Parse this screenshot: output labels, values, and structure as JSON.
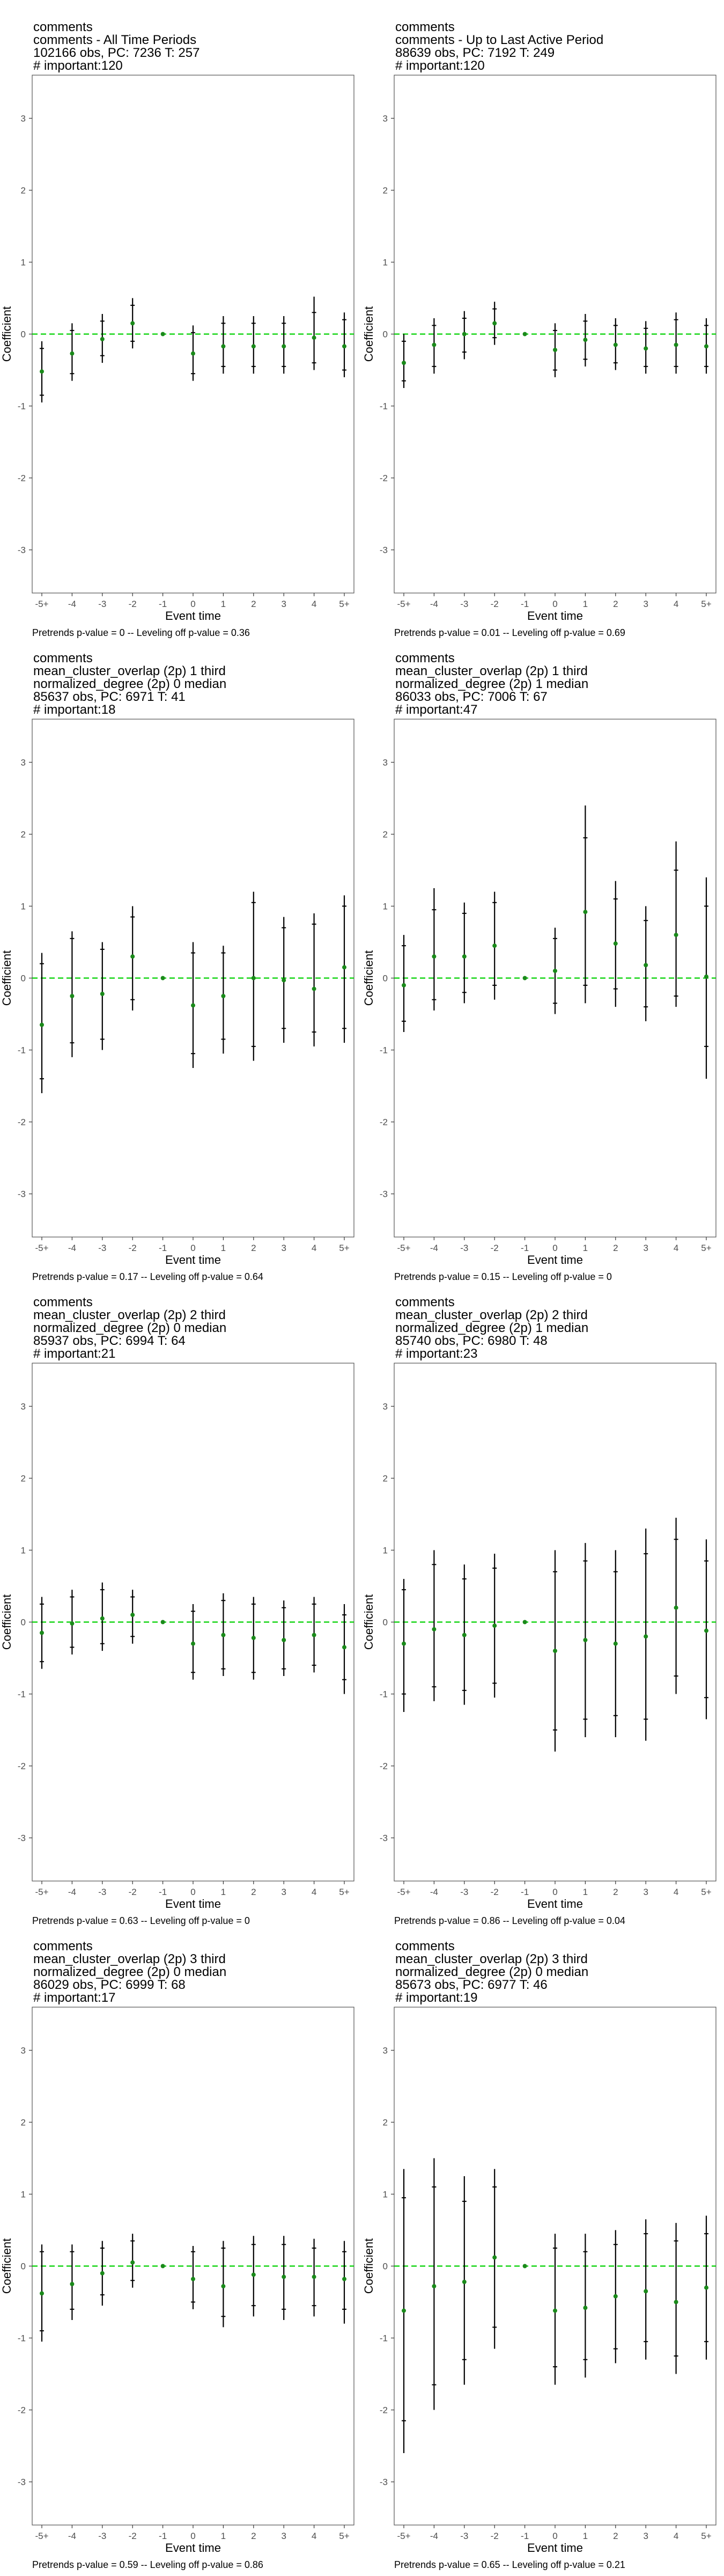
{
  "colors": {
    "point": "#1a8a1a",
    "zero_line": "#00d000",
    "error_bar": "#000000",
    "panel_border": "#555555"
  },
  "chart_data": [
    {
      "type": "scatter",
      "title_lines": [
        "comments",
        "comments - All Time Periods",
        "102166 obs, PC: 7236 T: 257",
        "# important:120"
      ],
      "xlabel": "Event time",
      "ylabel": "Coefficient",
      "categories": [
        "-5+",
        "-4",
        "-3",
        "-2",
        "-1",
        "0",
        "1",
        "2",
        "3",
        "4",
        "5+"
      ],
      "ylim": [
        -3.6,
        3.6
      ],
      "yticks": [
        -3,
        -2,
        -1,
        0,
        1,
        2,
        3
      ],
      "estimates": [
        -0.52,
        -0.27,
        -0.07,
        0.15,
        0.0,
        -0.27,
        -0.17,
        -0.17,
        -0.17,
        -0.05,
        -0.17
      ],
      "ci90": [
        [
          -0.85,
          -0.2
        ],
        [
          -0.55,
          0.05
        ],
        [
          -0.3,
          0.18
        ],
        [
          -0.1,
          0.4
        ],
        [
          0,
          0
        ],
        [
          -0.55,
          0.02
        ],
        [
          -0.45,
          0.15
        ],
        [
          -0.45,
          0.15
        ],
        [
          -0.45,
          0.15
        ],
        [
          -0.4,
          0.3
        ],
        [
          -0.5,
          0.2
        ]
      ],
      "ci95": [
        [
          -0.95,
          -0.1
        ],
        [
          -0.65,
          0.15
        ],
        [
          -0.4,
          0.28
        ],
        [
          -0.2,
          0.5
        ],
        [
          0,
          0
        ],
        [
          -0.65,
          0.12
        ],
        [
          -0.55,
          0.25
        ],
        [
          -0.55,
          0.25
        ],
        [
          -0.55,
          0.25
        ],
        [
          -0.5,
          0.52
        ],
        [
          -0.6,
          0.3
        ]
      ],
      "caption": "Pretrends p-value = 0 -- Leveling off p-value = 0.36"
    },
    {
      "type": "scatter",
      "title_lines": [
        "comments",
        "comments - Up to Last Active Period",
        "88639 obs, PC: 7192 T: 249",
        "# important:120"
      ],
      "xlabel": "Event time",
      "ylabel": "Coefficient",
      "categories": [
        "-5+",
        "-4",
        "-3",
        "-2",
        "-1",
        "0",
        "1",
        "2",
        "3",
        "4",
        "5+"
      ],
      "ylim": [
        -3.6,
        3.6
      ],
      "yticks": [
        -3,
        -2,
        -1,
        0,
        1,
        2,
        3
      ],
      "estimates": [
        -0.4,
        -0.15,
        0.0,
        0.15,
        0.0,
        -0.22,
        -0.08,
        -0.15,
        -0.2,
        -0.15,
        -0.17
      ],
      "ci90": [
        [
          -0.65,
          -0.1
        ],
        [
          -0.45,
          0.12
        ],
        [
          -0.25,
          0.22
        ],
        [
          -0.05,
          0.35
        ],
        [
          0,
          0
        ],
        [
          -0.5,
          0.05
        ],
        [
          -0.35,
          0.18
        ],
        [
          -0.4,
          0.12
        ],
        [
          -0.45,
          0.08
        ],
        [
          -0.45,
          0.2
        ],
        [
          -0.45,
          0.12
        ]
      ],
      "ci95": [
        [
          -0.75,
          0.0
        ],
        [
          -0.55,
          0.22
        ],
        [
          -0.35,
          0.32
        ],
        [
          -0.15,
          0.45
        ],
        [
          0,
          0
        ],
        [
          -0.6,
          0.15
        ],
        [
          -0.45,
          0.28
        ],
        [
          -0.5,
          0.22
        ],
        [
          -0.55,
          0.18
        ],
        [
          -0.55,
          0.3
        ],
        [
          -0.55,
          0.22
        ]
      ],
      "caption": "Pretrends p-value = 0.01 -- Leveling off p-value = 0.69"
    },
    {
      "type": "scatter",
      "title_lines": [
        "comments",
        "mean_cluster_overlap (2p) 1 third",
        "normalized_degree (2p) 0 median",
        "85637 obs, PC: 6971 T: 41",
        "# important:18"
      ],
      "xlabel": "Event time",
      "ylabel": "Coefficient",
      "categories": [
        "-5+",
        "-4",
        "-3",
        "-2",
        "-1",
        "0",
        "1",
        "2",
        "3",
        "4",
        "5+"
      ],
      "ylim": [
        -3.6,
        3.6
      ],
      "yticks": [
        -3,
        -2,
        -1,
        0,
        1,
        2,
        3
      ],
      "estimates": [
        -0.65,
        -0.25,
        -0.22,
        0.3,
        0.0,
        -0.38,
        -0.25,
        0.0,
        -0.03,
        -0.15,
        0.15
      ],
      "ci90": [
        [
          -1.4,
          0.2
        ],
        [
          -0.9,
          0.55
        ],
        [
          -0.85,
          0.4
        ],
        [
          -0.3,
          0.85
        ],
        [
          0,
          0
        ],
        [
          -1.05,
          0.35
        ],
        [
          -0.85,
          0.35
        ],
        [
          -0.95,
          1.05
        ],
        [
          -0.7,
          0.7
        ],
        [
          -0.75,
          0.75
        ],
        [
          -0.7,
          1.0
        ]
      ],
      "ci95": [
        [
          -1.6,
          0.35
        ],
        [
          -1.1,
          0.65
        ],
        [
          -1.0,
          0.5
        ],
        [
          -0.45,
          1.0
        ],
        [
          0,
          0
        ],
        [
          -1.25,
          0.5
        ],
        [
          -1.05,
          0.45
        ],
        [
          -1.15,
          1.2
        ],
        [
          -0.9,
          0.85
        ],
        [
          -0.95,
          0.9
        ],
        [
          -0.9,
          1.15
        ]
      ],
      "caption": "Pretrends p-value = 0.17 -- Leveling off p-value = 0.64"
    },
    {
      "type": "scatter",
      "title_lines": [
        "comments",
        "mean_cluster_overlap (2p) 1 third",
        "normalized_degree (2p) 1 median",
        "86033 obs, PC: 7006 T: 67",
        "# important:47"
      ],
      "xlabel": "Event time",
      "ylabel": "Coefficient",
      "categories": [
        "-5+",
        "-4",
        "-3",
        "-2",
        "-1",
        "0",
        "1",
        "2",
        "3",
        "4",
        "5+"
      ],
      "ylim": [
        -3.6,
        3.6
      ],
      "yticks": [
        -3,
        -2,
        -1,
        0,
        1,
        2,
        3
      ],
      "estimates": [
        -0.1,
        0.3,
        0.3,
        0.45,
        0.0,
        0.1,
        0.92,
        0.48,
        0.18,
        0.6,
        0.02
      ],
      "ci90": [
        [
          -0.6,
          0.45
        ],
        [
          -0.3,
          0.95
        ],
        [
          -0.2,
          0.9
        ],
        [
          -0.1,
          1.05
        ],
        [
          0,
          0
        ],
        [
          -0.35,
          0.55
        ],
        [
          -0.1,
          1.95
        ],
        [
          -0.15,
          1.1
        ],
        [
          -0.4,
          0.8
        ],
        [
          -0.25,
          1.5
        ],
        [
          -0.95,
          1.0
        ]
      ],
      "ci95": [
        [
          -0.75,
          0.6
        ],
        [
          -0.45,
          1.25
        ],
        [
          -0.35,
          1.05
        ],
        [
          -0.3,
          1.2
        ],
        [
          0,
          0
        ],
        [
          -0.5,
          0.7
        ],
        [
          -0.35,
          2.4
        ],
        [
          -0.4,
          1.35
        ],
        [
          -0.6,
          1.0
        ],
        [
          -0.4,
          1.9
        ],
        [
          -1.4,
          1.4
        ]
      ],
      "caption": "Pretrends p-value = 0.15 -- Leveling off p-value = 0"
    },
    {
      "type": "scatter",
      "title_lines": [
        "comments",
        "mean_cluster_overlap (2p) 2 third",
        "normalized_degree (2p) 0 median",
        "85937 obs, PC: 6994 T: 64",
        "# important:21"
      ],
      "xlabel": "Event time",
      "ylabel": "Coefficient",
      "categories": [
        "-5+",
        "-4",
        "-3",
        "-2",
        "-1",
        "0",
        "1",
        "2",
        "3",
        "4",
        "5+"
      ],
      "ylim": [
        -3.6,
        3.6
      ],
      "yticks": [
        -3,
        -2,
        -1,
        0,
        1,
        2,
        3
      ],
      "estimates": [
        -0.15,
        -0.02,
        0.05,
        0.1,
        0.0,
        -0.3,
        -0.18,
        -0.22,
        -0.25,
        -0.18,
        -0.35
      ],
      "ci90": [
        [
          -0.55,
          0.25
        ],
        [
          -0.35,
          0.35
        ],
        [
          -0.3,
          0.45
        ],
        [
          -0.2,
          0.35
        ],
        [
          0,
          0
        ],
        [
          -0.7,
          0.15
        ],
        [
          -0.65,
          0.3
        ],
        [
          -0.7,
          0.25
        ],
        [
          -0.65,
          0.2
        ],
        [
          -0.6,
          0.25
        ],
        [
          -0.8,
          0.1
        ]
      ],
      "ci95": [
        [
          -0.65,
          0.35
        ],
        [
          -0.45,
          0.45
        ],
        [
          -0.4,
          0.55
        ],
        [
          -0.3,
          0.45
        ],
        [
          0,
          0
        ],
        [
          -0.8,
          0.25
        ],
        [
          -0.75,
          0.4
        ],
        [
          -0.8,
          0.35
        ],
        [
          -0.75,
          0.3
        ],
        [
          -0.7,
          0.35
        ],
        [
          -1.0,
          0.25
        ]
      ],
      "caption": "Pretrends p-value = 0.63 -- Leveling off p-value = 0"
    },
    {
      "type": "scatter",
      "title_lines": [
        "comments",
        "mean_cluster_overlap (2p) 2 third",
        "normalized_degree (2p) 1 median",
        "85740 obs, PC: 6980 T: 48",
        "# important:23"
      ],
      "xlabel": "Event time",
      "ylabel": "Coefficient",
      "categories": [
        "-5+",
        "-4",
        "-3",
        "-2",
        "-1",
        "0",
        "1",
        "2",
        "3",
        "4",
        "5+"
      ],
      "ylim": [
        -3.6,
        3.6
      ],
      "yticks": [
        -3,
        -2,
        -1,
        0,
        1,
        2,
        3
      ],
      "estimates": [
        -0.3,
        -0.1,
        -0.18,
        -0.05,
        0.0,
        -0.4,
        -0.25,
        -0.3,
        -0.2,
        0.2,
        -0.12
      ],
      "ci90": [
        [
          -1.0,
          0.45
        ],
        [
          -0.9,
          0.8
        ],
        [
          -0.95,
          0.6
        ],
        [
          -0.85,
          0.75
        ],
        [
          0,
          0
        ],
        [
          -1.5,
          0.7
        ],
        [
          -1.35,
          0.85
        ],
        [
          -1.3,
          0.7
        ],
        [
          -1.35,
          0.95
        ],
        [
          -0.75,
          1.15
        ],
        [
          -1.05,
          0.85
        ]
      ],
      "ci95": [
        [
          -1.25,
          0.6
        ],
        [
          -1.1,
          1.0
        ],
        [
          -1.15,
          0.8
        ],
        [
          -1.05,
          0.95
        ],
        [
          0,
          0
        ],
        [
          -1.8,
          1.0
        ],
        [
          -1.6,
          1.1
        ],
        [
          -1.6,
          1.0
        ],
        [
          -1.65,
          1.3
        ],
        [
          -1.0,
          1.45
        ],
        [
          -1.35,
          1.15
        ]
      ],
      "caption": "Pretrends p-value = 0.86 -- Leveling off p-value = 0.04"
    },
    {
      "type": "scatter",
      "title_lines": [
        "comments",
        "mean_cluster_overlap (2p) 3 third",
        "normalized_degree (2p) 0 median",
        "86029 obs, PC: 6999 T: 68",
        "# important:17"
      ],
      "xlabel": "Event time",
      "ylabel": "Coefficient",
      "categories": [
        "-5+",
        "-4",
        "-3",
        "-2",
        "-1",
        "0",
        "1",
        "2",
        "3",
        "4",
        "5+"
      ],
      "ylim": [
        -3.6,
        3.6
      ],
      "yticks": [
        -3,
        -2,
        -1,
        0,
        1,
        2,
        3
      ],
      "estimates": [
        -0.38,
        -0.25,
        -0.1,
        0.05,
        0.0,
        -0.18,
        -0.28,
        -0.12,
        -0.15,
        -0.15,
        -0.18
      ],
      "ci90": [
        [
          -0.9,
          0.2
        ],
        [
          -0.6,
          0.2
        ],
        [
          -0.4,
          0.25
        ],
        [
          -0.2,
          0.35
        ],
        [
          0,
          0
        ],
        [
          -0.5,
          0.2
        ],
        [
          -0.7,
          0.25
        ],
        [
          -0.55,
          0.3
        ],
        [
          -0.6,
          0.3
        ],
        [
          -0.55,
          0.25
        ],
        [
          -0.6,
          0.2
        ]
      ],
      "ci95": [
        [
          -1.05,
          0.3
        ],
        [
          -0.75,
          0.3
        ],
        [
          -0.55,
          0.35
        ],
        [
          -0.3,
          0.45
        ],
        [
          0,
          0
        ],
        [
          -0.6,
          0.28
        ],
        [
          -0.85,
          0.35
        ],
        [
          -0.7,
          0.42
        ],
        [
          -0.75,
          0.42
        ],
        [
          -0.7,
          0.38
        ],
        [
          -0.8,
          0.35
        ]
      ],
      "caption": "Pretrends p-value = 0.59 -- Leveling off p-value = 0.86"
    },
    {
      "type": "scatter",
      "title_lines": [
        "comments",
        "mean_cluster_overlap (2p) 3 third",
        "normalized_degree (2p) 0 median",
        "85673 obs, PC: 6977 T: 46",
        "# important:19"
      ],
      "xlabel": "Event time",
      "ylabel": "Coefficient",
      "categories": [
        "-5+",
        "-4",
        "-3",
        "-2",
        "-1",
        "0",
        "1",
        "2",
        "3",
        "4",
        "5+"
      ],
      "ylim": [
        -3.6,
        3.6
      ],
      "yticks": [
        -3,
        -2,
        -1,
        0,
        1,
        2,
        3
      ],
      "estimates": [
        -0.62,
        -0.28,
        -0.22,
        0.12,
        0.0,
        -0.62,
        -0.58,
        -0.42,
        -0.35,
        -0.5,
        -0.3
      ],
      "ci90": [
        [
          -2.15,
          0.95
        ],
        [
          -1.65,
          1.1
        ],
        [
          -1.3,
          0.9
        ],
        [
          -0.85,
          1.1
        ],
        [
          0,
          0
        ],
        [
          -1.4,
          0.25
        ],
        [
          -1.3,
          0.2
        ],
        [
          -1.15,
          0.3
        ],
        [
          -1.05,
          0.45
        ],
        [
          -1.25,
          0.35
        ],
        [
          -1.05,
          0.45
        ]
      ],
      "ci95": [
        [
          -2.6,
          1.35
        ],
        [
          -2.0,
          1.5
        ],
        [
          -1.65,
          1.25
        ],
        [
          -1.15,
          1.35
        ],
        [
          0,
          0
        ],
        [
          -1.65,
          0.45
        ],
        [
          -1.55,
          0.45
        ],
        [
          -1.35,
          0.5
        ],
        [
          -1.3,
          0.65
        ],
        [
          -1.5,
          0.6
        ],
        [
          -1.3,
          0.7
        ]
      ],
      "caption": "Pretrends p-value = 0.65 -- Leveling off p-value = 0.21"
    }
  ]
}
